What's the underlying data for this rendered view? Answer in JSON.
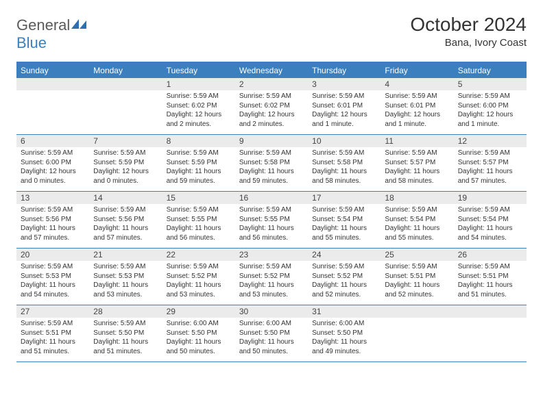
{
  "logo": {
    "word1": "General",
    "word2": "Blue",
    "icon_color": "#2f6fb0"
  },
  "title": "October 2024",
  "location": "Bana, Ivory Coast",
  "colors": {
    "header_bg": "#3b7fbf",
    "header_text": "#ffffff",
    "daynum_bg": "#ebebeb",
    "border": "#3b7fbf",
    "text": "#333333"
  },
  "dow": [
    "Sunday",
    "Monday",
    "Tuesday",
    "Wednesday",
    "Thursday",
    "Friday",
    "Saturday"
  ],
  "weeks": [
    [
      null,
      null,
      {
        "n": "1",
        "sunrise": "5:59 AM",
        "sunset": "6:02 PM",
        "daylight": "12 hours and 2 minutes."
      },
      {
        "n": "2",
        "sunrise": "5:59 AM",
        "sunset": "6:02 PM",
        "daylight": "12 hours and 2 minutes."
      },
      {
        "n": "3",
        "sunrise": "5:59 AM",
        "sunset": "6:01 PM",
        "daylight": "12 hours and 1 minute."
      },
      {
        "n": "4",
        "sunrise": "5:59 AM",
        "sunset": "6:01 PM",
        "daylight": "12 hours and 1 minute."
      },
      {
        "n": "5",
        "sunrise": "5:59 AM",
        "sunset": "6:00 PM",
        "daylight": "12 hours and 1 minute."
      }
    ],
    [
      {
        "n": "6",
        "sunrise": "5:59 AM",
        "sunset": "6:00 PM",
        "daylight": "12 hours and 0 minutes."
      },
      {
        "n": "7",
        "sunrise": "5:59 AM",
        "sunset": "5:59 PM",
        "daylight": "12 hours and 0 minutes."
      },
      {
        "n": "8",
        "sunrise": "5:59 AM",
        "sunset": "5:59 PM",
        "daylight": "11 hours and 59 minutes."
      },
      {
        "n": "9",
        "sunrise": "5:59 AM",
        "sunset": "5:58 PM",
        "daylight": "11 hours and 59 minutes."
      },
      {
        "n": "10",
        "sunrise": "5:59 AM",
        "sunset": "5:58 PM",
        "daylight": "11 hours and 58 minutes."
      },
      {
        "n": "11",
        "sunrise": "5:59 AM",
        "sunset": "5:57 PM",
        "daylight": "11 hours and 58 minutes."
      },
      {
        "n": "12",
        "sunrise": "5:59 AM",
        "sunset": "5:57 PM",
        "daylight": "11 hours and 57 minutes."
      }
    ],
    [
      {
        "n": "13",
        "sunrise": "5:59 AM",
        "sunset": "5:56 PM",
        "daylight": "11 hours and 57 minutes."
      },
      {
        "n": "14",
        "sunrise": "5:59 AM",
        "sunset": "5:56 PM",
        "daylight": "11 hours and 57 minutes."
      },
      {
        "n": "15",
        "sunrise": "5:59 AM",
        "sunset": "5:55 PM",
        "daylight": "11 hours and 56 minutes."
      },
      {
        "n": "16",
        "sunrise": "5:59 AM",
        "sunset": "5:55 PM",
        "daylight": "11 hours and 56 minutes."
      },
      {
        "n": "17",
        "sunrise": "5:59 AM",
        "sunset": "5:54 PM",
        "daylight": "11 hours and 55 minutes."
      },
      {
        "n": "18",
        "sunrise": "5:59 AM",
        "sunset": "5:54 PM",
        "daylight": "11 hours and 55 minutes."
      },
      {
        "n": "19",
        "sunrise": "5:59 AM",
        "sunset": "5:54 PM",
        "daylight": "11 hours and 54 minutes."
      }
    ],
    [
      {
        "n": "20",
        "sunrise": "5:59 AM",
        "sunset": "5:53 PM",
        "daylight": "11 hours and 54 minutes."
      },
      {
        "n": "21",
        "sunrise": "5:59 AM",
        "sunset": "5:53 PM",
        "daylight": "11 hours and 53 minutes."
      },
      {
        "n": "22",
        "sunrise": "5:59 AM",
        "sunset": "5:52 PM",
        "daylight": "11 hours and 53 minutes."
      },
      {
        "n": "23",
        "sunrise": "5:59 AM",
        "sunset": "5:52 PM",
        "daylight": "11 hours and 53 minutes."
      },
      {
        "n": "24",
        "sunrise": "5:59 AM",
        "sunset": "5:52 PM",
        "daylight": "11 hours and 52 minutes."
      },
      {
        "n": "25",
        "sunrise": "5:59 AM",
        "sunset": "5:51 PM",
        "daylight": "11 hours and 52 minutes."
      },
      {
        "n": "26",
        "sunrise": "5:59 AM",
        "sunset": "5:51 PM",
        "daylight": "11 hours and 51 minutes."
      }
    ],
    [
      {
        "n": "27",
        "sunrise": "5:59 AM",
        "sunset": "5:51 PM",
        "daylight": "11 hours and 51 minutes."
      },
      {
        "n": "28",
        "sunrise": "5:59 AM",
        "sunset": "5:50 PM",
        "daylight": "11 hours and 51 minutes."
      },
      {
        "n": "29",
        "sunrise": "6:00 AM",
        "sunset": "5:50 PM",
        "daylight": "11 hours and 50 minutes."
      },
      {
        "n": "30",
        "sunrise": "6:00 AM",
        "sunset": "5:50 PM",
        "daylight": "11 hours and 50 minutes."
      },
      {
        "n": "31",
        "sunrise": "6:00 AM",
        "sunset": "5:50 PM",
        "daylight": "11 hours and 49 minutes."
      },
      null,
      null
    ]
  ]
}
